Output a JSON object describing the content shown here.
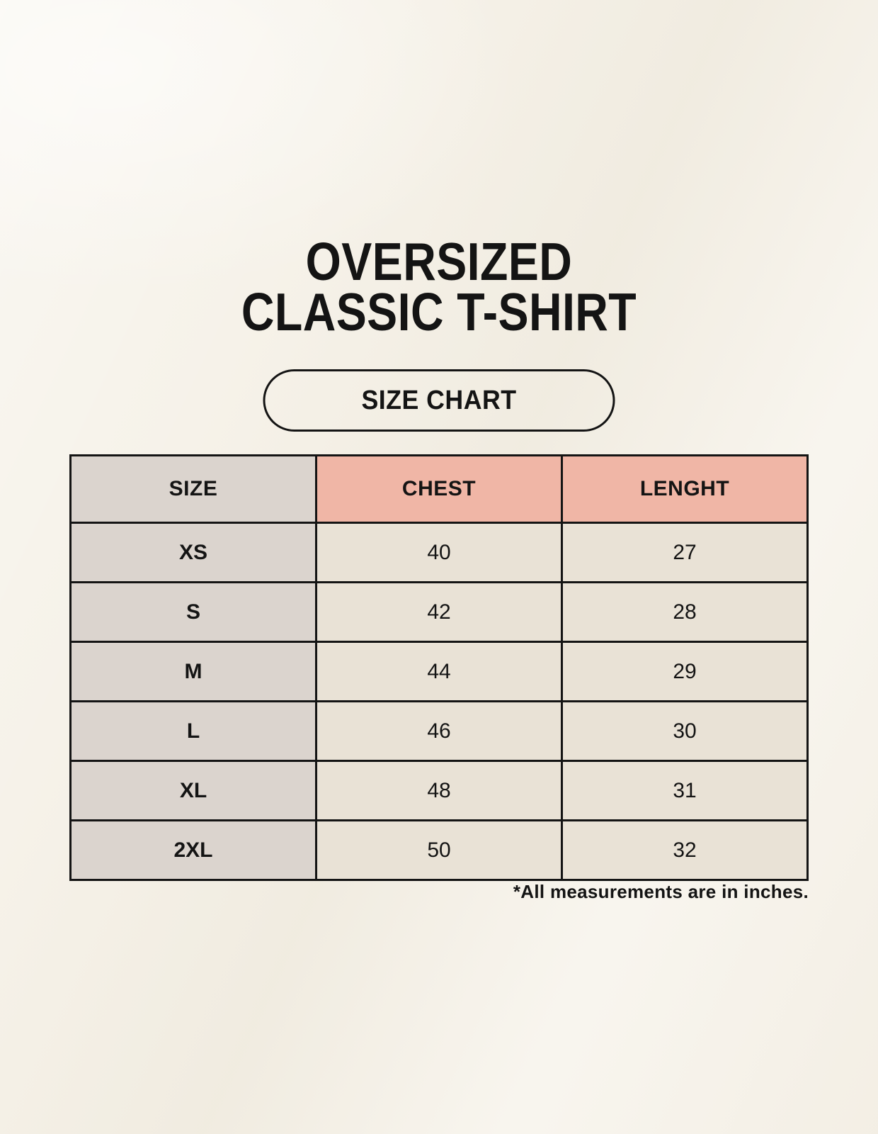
{
  "title": {
    "line1": "OVERSIZED",
    "line2": "CLASSIC T-SHIRT"
  },
  "size_chart_button": {
    "label": "SIZE CHART"
  },
  "chart_data": {
    "type": "table",
    "title": "OVERSIZED CLASSIC T-SHIRT",
    "columns": [
      "SIZE",
      "CHEST",
      "LENGHT"
    ],
    "rows": [
      {
        "size": "XS",
        "chest": 40,
        "lenght": 27
      },
      {
        "size": "S",
        "chest": 42,
        "lenght": 28
      },
      {
        "size": "M",
        "chest": 44,
        "lenght": 29
      },
      {
        "size": "L",
        "chest": 46,
        "lenght": 30
      },
      {
        "size": "XL",
        "chest": 48,
        "lenght": 31
      },
      {
        "size": "2XL",
        "chest": 50,
        "lenght": 32
      }
    ],
    "units": "inches"
  },
  "footnote": "*All measurements are in inches.",
  "colors": {
    "background": "#f6f2e9",
    "header_accent": "#f0b6a6",
    "size_column": "#dbd4ce",
    "data_cell": "#e9e2d6",
    "border": "#141414",
    "text": "#141414"
  }
}
